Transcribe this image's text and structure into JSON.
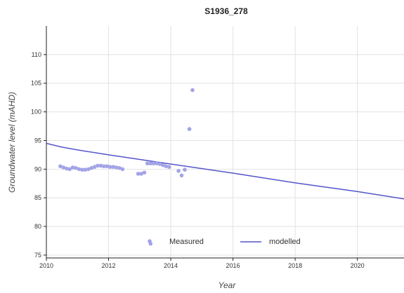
{
  "chart_data": {
    "type": "scatter",
    "title": "S1936_278",
    "xlabel": "Year",
    "ylabel": "Groundwater level (mAHD)",
    "xlim": [
      2010,
      2021.5
    ],
    "ylim": [
      74.5,
      115
    ],
    "xticks": [
      2010,
      2012,
      2014,
      2016,
      2018,
      2020
    ],
    "yticks": [
      75,
      80,
      85,
      90,
      95,
      100,
      105,
      110
    ],
    "grid": true,
    "legend": {
      "placement": "bottom-center"
    },
    "series": [
      {
        "name": "Measured",
        "kind": "scatter",
        "color": "#a3a3e6",
        "points": [
          [
            2010.45,
            90.5
          ],
          [
            2010.55,
            90.3
          ],
          [
            2010.65,
            90.1
          ],
          [
            2010.75,
            90.0
          ],
          [
            2010.85,
            90.3
          ],
          [
            2010.95,
            90.2
          ],
          [
            2011.05,
            90.0
          ],
          [
            2011.15,
            89.9
          ],
          [
            2011.25,
            89.9
          ],
          [
            2011.35,
            90.0
          ],
          [
            2011.45,
            90.2
          ],
          [
            2011.55,
            90.4
          ],
          [
            2011.65,
            90.6
          ],
          [
            2011.75,
            90.6
          ],
          [
            2011.85,
            90.5
          ],
          [
            2011.95,
            90.5
          ],
          [
            2012.05,
            90.4
          ],
          [
            2012.15,
            90.4
          ],
          [
            2012.25,
            90.3
          ],
          [
            2012.35,
            90.2
          ],
          [
            2012.45,
            90.0
          ],
          [
            2012.95,
            89.2
          ],
          [
            2013.05,
            89.2
          ],
          [
            2013.15,
            89.4
          ],
          [
            2013.25,
            91.0
          ],
          [
            2013.35,
            91.0
          ],
          [
            2013.45,
            91.0
          ],
          [
            2013.55,
            91.0
          ],
          [
            2013.65,
            90.9
          ],
          [
            2013.75,
            90.7
          ],
          [
            2013.85,
            90.5
          ],
          [
            2013.95,
            90.4
          ],
          [
            2014.25,
            89.7
          ],
          [
            2014.35,
            88.9
          ],
          [
            2014.45,
            89.9
          ],
          [
            2014.6,
            97.0
          ],
          [
            2014.7,
            103.8
          ],
          [
            2013.35,
            77.0
          ]
        ]
      },
      {
        "name": "modelled",
        "kind": "line",
        "color": "#5555cc",
        "points": [
          [
            2010,
            94.5
          ],
          [
            2010.5,
            93.85
          ],
          [
            2011,
            93.35
          ],
          [
            2012,
            92.5
          ],
          [
            2014,
            90.9
          ],
          [
            2016,
            89.3
          ],
          [
            2018,
            87.6
          ],
          [
            2020,
            86.1
          ],
          [
            2021.5,
            84.8
          ]
        ]
      }
    ]
  }
}
